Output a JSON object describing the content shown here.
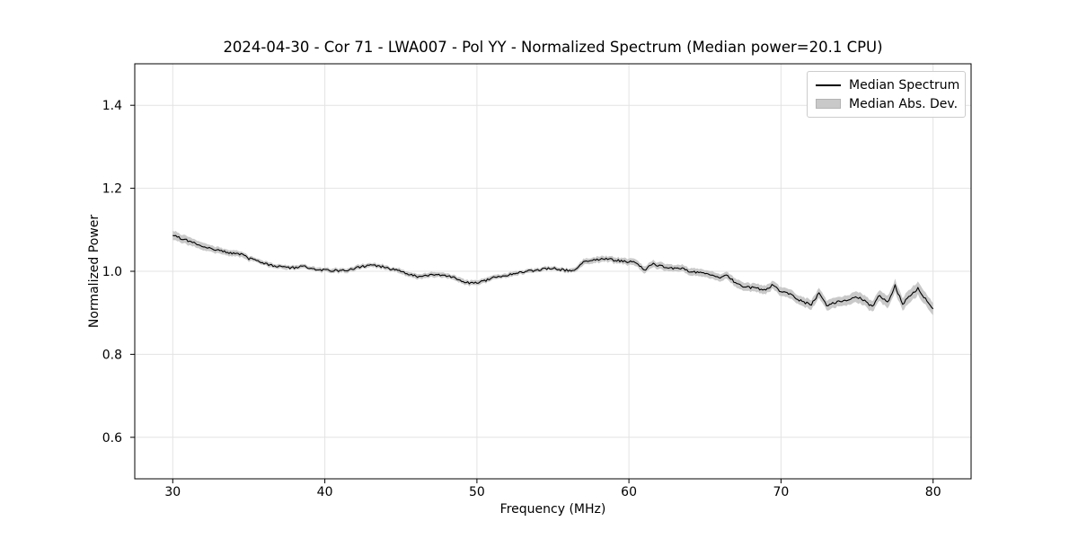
{
  "figure": {
    "title": "2024-04-30 - Cor 71 - LWA007 - Pol YY - Normalized Spectrum (Median power=20.1 CPU)"
  },
  "chart_data": {
    "type": "line",
    "title": "2024-04-30 - Cor 71 - LWA007 - Pol YY - Normalized Spectrum (Median power=20.1 CPU)",
    "xlabel": "Frequency (MHz)",
    "ylabel": "Normalized Power",
    "xlim": [
      27.5,
      82.5
    ],
    "ylim": [
      0.5,
      1.5
    ],
    "xticks": [
      30,
      40,
      50,
      60,
      70,
      80
    ],
    "xtick_labels": [
      "30",
      "40",
      "50",
      "60",
      "70",
      "80"
    ],
    "yticks": [
      0.6,
      0.8,
      1.0,
      1.2,
      1.4
    ],
    "ytick_labels": [
      "0.6",
      "0.8",
      "1.0",
      "1.2",
      "1.4"
    ],
    "grid": true,
    "background": "#ffffff",
    "legend": {
      "position": "upper right",
      "entries": [
        {
          "label": "Median Spectrum",
          "type": "line",
          "color": "#000000"
        },
        {
          "label": "Median Abs. Dev.",
          "type": "patch",
          "color": "#c9c9c9"
        }
      ]
    },
    "series": [
      {
        "name": "Median Spectrum",
        "type": "line",
        "color": "#000000",
        "x_start": 30.0,
        "x_step": 0.5,
        "y": [
          1.086,
          1.08,
          1.074,
          1.068,
          1.061,
          1.055,
          1.05,
          1.046,
          1.043,
          1.041,
          1.031,
          1.028,
          1.02,
          1.014,
          1.011,
          1.008,
          1.009,
          1.013,
          1.007,
          1.005,
          1.003,
          1.002,
          1.001,
          1.003,
          1.008,
          1.012,
          1.014,
          1.013,
          1.009,
          1.004,
          1.0,
          0.994,
          0.988,
          0.987,
          0.992,
          0.991,
          0.99,
          0.984,
          0.977,
          0.972,
          0.973,
          0.977,
          0.985,
          0.988,
          0.991,
          0.994,
          0.998,
          1.001,
          1.003,
          1.006,
          1.008,
          1.004,
          1.002,
          1.005,
          1.021,
          1.025,
          1.029,
          1.031,
          1.027,
          1.025,
          1.023,
          1.021,
          1.002,
          1.018,
          1.013,
          1.01,
          1.007,
          1.008,
          0.998,
          0.998,
          0.995,
          0.991,
          0.984,
          0.99,
          0.972,
          0.964,
          0.961,
          0.958,
          0.956,
          0.968,
          0.95,
          0.947,
          0.935,
          0.925,
          0.92,
          0.948,
          0.918,
          0.925,
          0.927,
          0.932,
          0.938,
          0.93,
          0.914,
          0.943,
          0.924,
          0.965,
          0.921,
          0.942,
          0.959,
          0.933,
          0.91
        ]
      },
      {
        "name": "Median Abs. Dev.",
        "type": "band",
        "color": "#c9c9c9",
        "x_start": 30.0,
        "x_step": 0.5,
        "half_width": [
          0.011,
          0.01,
          0.01,
          0.009,
          0.009,
          0.008,
          0.008,
          0.007,
          0.007,
          0.007,
          0.006,
          0.005,
          0.005,
          0.005,
          0.005,
          0.005,
          0.005,
          0.005,
          0.005,
          0.005,
          0.005,
          0.005,
          0.005,
          0.005,
          0.005,
          0.005,
          0.005,
          0.005,
          0.005,
          0.005,
          0.006,
          0.006,
          0.006,
          0.006,
          0.006,
          0.006,
          0.006,
          0.006,
          0.006,
          0.006,
          0.006,
          0.006,
          0.005,
          0.005,
          0.005,
          0.005,
          0.005,
          0.005,
          0.005,
          0.005,
          0.005,
          0.005,
          0.005,
          0.006,
          0.007,
          0.007,
          0.007,
          0.007,
          0.007,
          0.007,
          0.008,
          0.008,
          0.008,
          0.008,
          0.008,
          0.008,
          0.008,
          0.008,
          0.009,
          0.009,
          0.009,
          0.009,
          0.009,
          0.009,
          0.01,
          0.01,
          0.01,
          0.01,
          0.01,
          0.01,
          0.011,
          0.011,
          0.011,
          0.011,
          0.012,
          0.012,
          0.012,
          0.012,
          0.012,
          0.012,
          0.013,
          0.013,
          0.013,
          0.013,
          0.015,
          0.015,
          0.015,
          0.016,
          0.016,
          0.015,
          0.015
        ]
      }
    ],
    "noise_amplitude": 0.0028,
    "noise_seed": 20240430
  },
  "colors": {
    "line": "#000000",
    "band": "#c9c9c9",
    "grid": "#e3e3e3",
    "frame": "#000000",
    "text": "#000000",
    "legend_border": "#cccccc"
  }
}
